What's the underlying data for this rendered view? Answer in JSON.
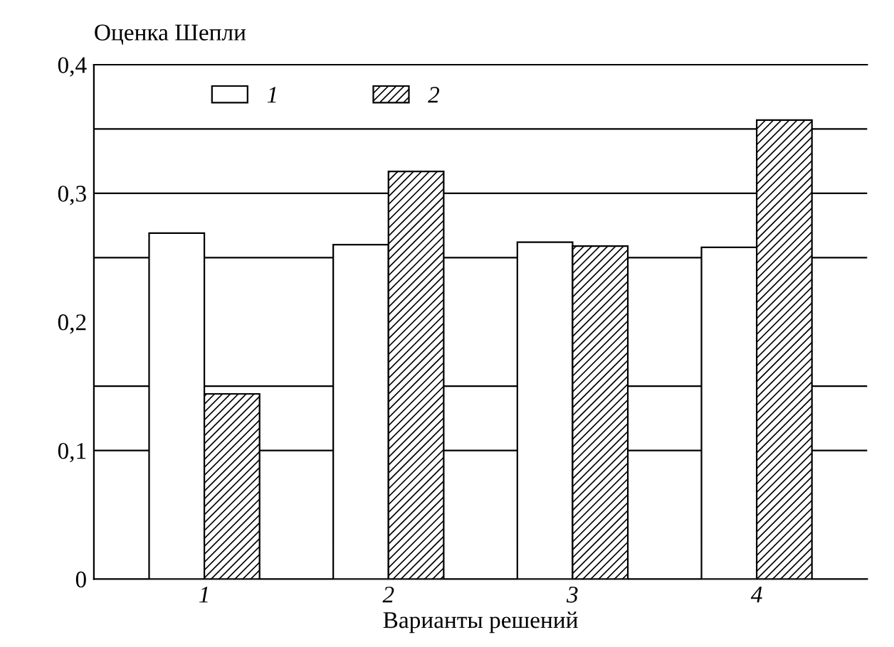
{
  "chart_data": {
    "type": "bar",
    "ylabel": "Оценка Шепли",
    "xlabel": "Варианты решений",
    "categories": [
      "1",
      "2",
      "3",
      "4"
    ],
    "series": [
      {
        "name": "1",
        "color": "#ffffff",
        "values": [
          0.269,
          0.26,
          0.262,
          0.258
        ]
      },
      {
        "name": "2",
        "color": "#000000",
        "values": [
          0.144,
          0.317,
          0.259,
          0.357
        ]
      }
    ],
    "ylim": [
      0,
      0.4
    ],
    "yticks": [
      {
        "value": 0,
        "label": "0"
      },
      {
        "value": 0.1,
        "label": "0,1"
      },
      {
        "value": 0.2,
        "label": "0,2"
      },
      {
        "value": 0.3,
        "label": "0,3"
      },
      {
        "value": 0.4,
        "label": "0,4"
      }
    ],
    "ref_lines": [
      {
        "axis": "y",
        "value": 0.1,
        "color": "#000000"
      },
      {
        "axis": "y",
        "value": 0.15,
        "color": "#000000"
      },
      {
        "axis": "y",
        "value": 0.25,
        "color": "#000000"
      },
      {
        "axis": "y",
        "value": 0.3,
        "color": "#000000"
      },
      {
        "axis": "y",
        "value": 0.35,
        "color": "#000000"
      }
    ],
    "legend": "top"
  }
}
